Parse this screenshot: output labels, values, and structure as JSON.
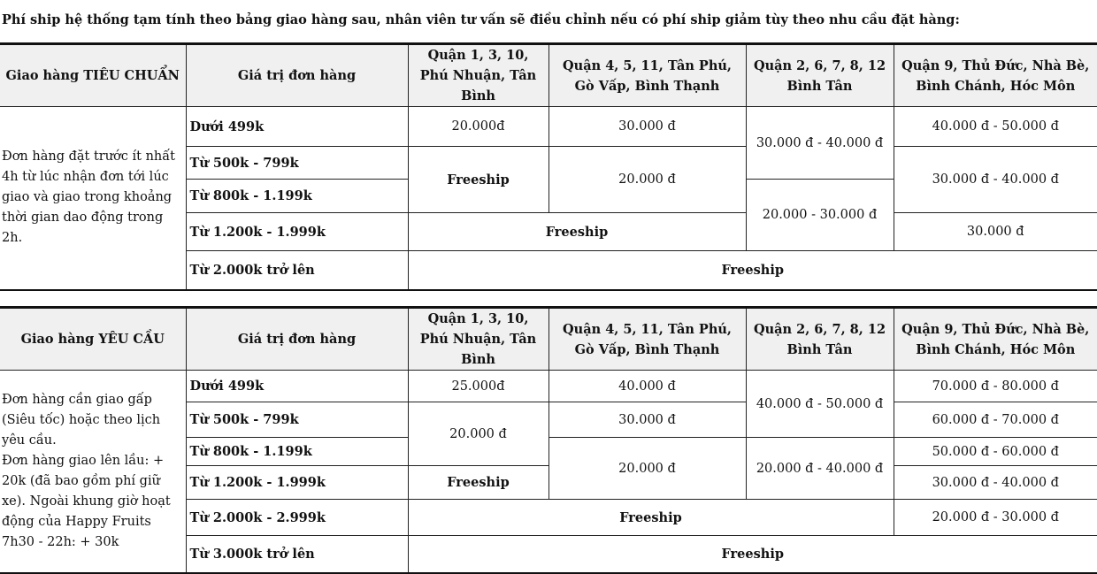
{
  "intro": "Phí ship hệ thống tạm tính theo bảng giao hàng sau, nhân viên tư vấn sẽ điều chỉnh nếu có phí ship giảm tùy theo nhu cầu đặt hàng:",
  "tables": [
    {
      "headers": [
        "Giao hàng TIÊU CHUẨN",
        "Giá trị đơn hàng",
        "Quận 1, 3, 10, Phú Nhuận, Tân Bình",
        "Quận 4, 5, 11, Tân Phú, Gò Vấp, Bình Thạnh",
        "Quận 2, 6, 7, 8, 12 Bình Tân",
        "Quận 9, Thủ Đức, Nhà Bè, Bình Chánh, Hóc Môn"
      ],
      "description": "Đơn hàng đặt trước ít nhất 4h từ lúc nhận đơn tới lúc giao và giao trong khoảng thời gian dao động trong 2h.",
      "rows": [
        {
          "range": "Dưới 499k",
          "cells": [
            {
              "text": "20.000đ"
            },
            {
              "text": "30.000 đ"
            },
            {
              "text": "30.000 đ - 40.000 đ",
              "rowspan": 2
            },
            {
              "text": "40.000 đ - 50.000 đ"
            }
          ]
        },
        {
          "range": "Từ 500k - 799k",
          "cells": [
            {
              "text": "Freeship",
              "rowspan": 2,
              "bold": true
            },
            {
              "text": "20.000 đ",
              "rowspan": 2
            },
            {
              "text": "30.000 đ - 40.000 đ",
              "rowspan": 2
            }
          ]
        },
        {
          "range": "Từ 800k - 1.199k",
          "cells": [
            {
              "text": "20.000 - 30.000 đ",
              "rowspan": 2
            }
          ]
        },
        {
          "range": "Từ 1.200k - 1.999k",
          "cells": [
            {
              "text": "Freeship",
              "colspan": 2,
              "bold": true
            },
            {
              "text": "30.000 đ"
            }
          ]
        },
        {
          "range": "Từ 2.000k trở lên",
          "cells": [
            {
              "text": "Freeship",
              "colspan": 4,
              "bold": true
            }
          ]
        }
      ]
    },
    {
      "headers": [
        "Giao hàng YÊU CẦU",
        "Giá trị đơn hàng",
        "Quận 1, 3, 10, Phú Nhuận, Tân Bình",
        "Quận 4, 5, 11, Tân Phú, Gò Vấp, Bình Thạnh",
        "Quận 2, 6, 7, 8, 12 Bình Tân",
        "Quận 9, Thủ Đức, Nhà Bè, Bình Chánh, Hóc Môn"
      ],
      "description": "Đơn hàng cần giao gấp (Siêu tốc) hoặc theo lịch yêu cầu.\nĐơn hàng giao lên lầu: + 20k (đã bao gồm phí giữ xe). Ngoài khung giờ hoạt động của Happy Fruits 7h30 - 22h: + 30k",
      "rows": [
        {
          "range": "Dưới 499k",
          "cells": [
            {
              "text": "25.000đ"
            },
            {
              "text": "40.000 đ"
            },
            {
              "text": "40.000 đ - 50.000 đ",
              "rowspan": 2
            },
            {
              "text": "70.000 đ - 80.000 đ"
            }
          ]
        },
        {
          "range": "Từ 500k - 799k",
          "cells": [
            {
              "text": "20.000 đ",
              "rowspan": 2
            },
            {
              "text": "30.000 đ"
            },
            {
              "text": "60.000 đ - 70.000 đ"
            }
          ]
        },
        {
          "range": "Từ 800k - 1.199k",
          "cells": [
            {
              "text": "20.000 đ",
              "rowspan": 2
            },
            {
              "text": "20.000 đ - 40.000 đ",
              "rowspan": 2
            },
            {
              "text": "50.000 đ - 60.000 đ"
            }
          ]
        },
        {
          "range": "Từ 1.200k - 1.999k",
          "cells": [
            {
              "text": "Freeship",
              "bold": true
            },
            {
              "text": "30.000 đ - 40.000 đ"
            }
          ]
        },
        {
          "range": "Từ 2.000k - 2.999k",
          "cells": [
            {
              "text": "Freeship",
              "colspan": 3,
              "bold": true
            },
            {
              "text": "20.000 đ - 30.000 đ"
            }
          ]
        },
        {
          "range": "Từ 3.000k trở lên",
          "cells": [
            {
              "text": "Freeship",
              "colspan": 4,
              "bold": true
            }
          ]
        }
      ]
    }
  ]
}
